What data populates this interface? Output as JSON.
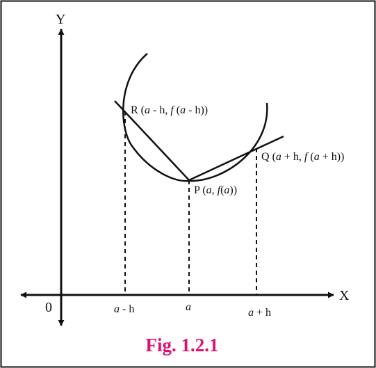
{
  "figure": {
    "caption": "Fig. 1.2.1",
    "colors": {
      "caption": "#e0116f",
      "ink": "#111111",
      "border": "#111111"
    }
  },
  "axes": {
    "x_label": "X",
    "y_label": "Y",
    "origin_label": "0"
  },
  "ticks": {
    "a_minus_h": {
      "var": "a",
      "rest": " - h"
    },
    "a": {
      "var": "a"
    },
    "a_plus_h": {
      "var": "a",
      "rest": " + h"
    }
  },
  "points": {
    "R": {
      "name": "R",
      "open": " (",
      "var1": "a",
      "mid": " - h, ",
      "fn": "f",
      "open2": " (",
      "var2": "a",
      "tail": " - h))"
    },
    "P": {
      "name": "P",
      "open": " (",
      "var1": "a",
      "mid": ", ",
      "fn": "f",
      "open2": "(",
      "var2": "a",
      "tail": "))"
    },
    "Q": {
      "name": "Q",
      "open": " (",
      "var1": "a",
      "mid": " + h, ",
      "fn": "f",
      "open2": " (",
      "var2": "a",
      "tail": " + h))"
    }
  }
}
